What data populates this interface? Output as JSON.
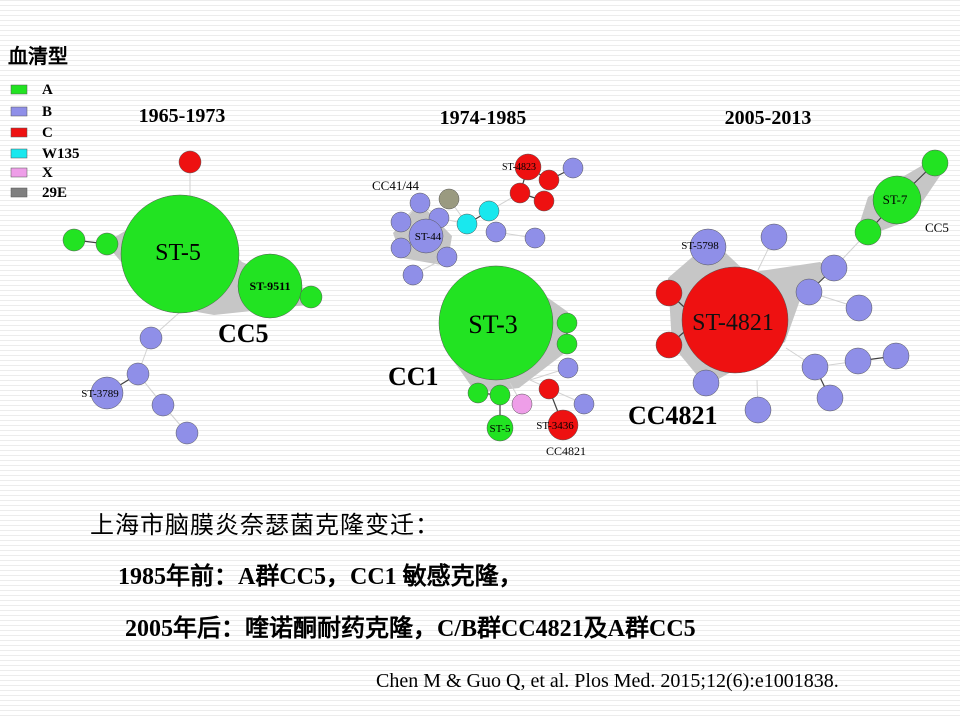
{
  "title": "血清型",
  "legend": [
    {
      "label": "A",
      "color": "#22e322"
    },
    {
      "label": "B",
      "color": "#8f8fe8"
    },
    {
      "label": "C",
      "color": "#ee1111"
    },
    {
      "label": "W135",
      "color": "#19e8ee"
    },
    {
      "label": "X",
      "color": "#ee9ee8"
    },
    {
      "label": "29E",
      "color": "#7f7f7f"
    }
  ],
  "periods": [
    "1965-1973",
    "1974-1985",
    "2005-2013"
  ],
  "node_labels": {
    "st5": "ST-5",
    "st9511": "ST-9511",
    "st3789": "ST-3789",
    "st3": "ST-3",
    "st44": "ST-44",
    "st4823": "ST-4823",
    "st3436": "ST-3436",
    "st5b": "ST-5",
    "st4821": "ST-4821",
    "st5798": "ST-5798",
    "st7": "ST-7"
  },
  "cluster_labels": {
    "cc5_left": "CC5",
    "cc1": "CC1",
    "cc4144": "CC41/44",
    "cc4821_small": "CC4821",
    "cc4821_big": "CC4821",
    "cc5_right": "CC5"
  },
  "text": {
    "line1": "上海市脑膜炎奈瑟菌克隆变迁：",
    "line2": "1985年前：A群CC5，CC1 敏感克隆，",
    "line3": "2005年后：喹诺酮耐药克隆，C/B群CC4821及A群CC5",
    "citation": "Chen M & Guo Q, et al. Plos Med. 2015;12(6):e1001838."
  }
}
